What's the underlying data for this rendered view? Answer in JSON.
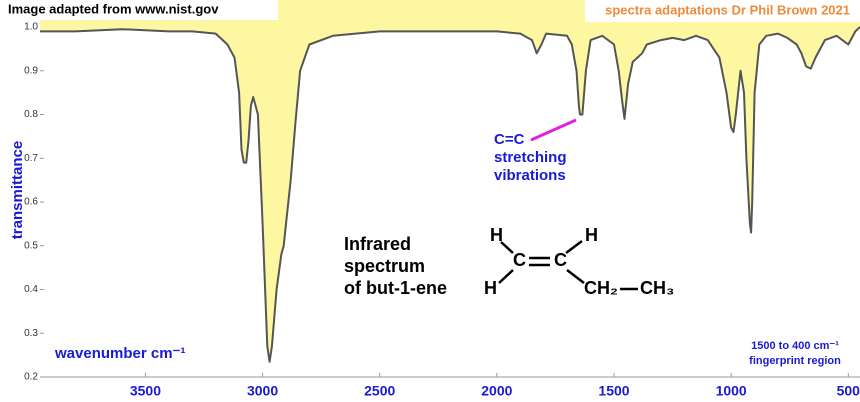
{
  "chart_data": {
    "type": "line",
    "title_lines": [
      "Infrared",
      "spectrum",
      "of but-1-ene"
    ],
    "source": "Image adapted from www.nist.gov",
    "credit": "spectra adaptations Dr Phil Brown 2021",
    "x_label": "wavenumber  cm⁻¹",
    "y_label": "transmittance",
    "annotation_lines": [
      "C=C",
      "stretching",
      "vibrations"
    ],
    "region_lines": [
      "1500 to 400 cm⁻¹",
      "fingerprint region"
    ],
    "molecule": {
      "atoms": [
        "H",
        "H",
        "C",
        "C",
        "H",
        "CH₂",
        "CH₃"
      ]
    },
    "color": "#555555",
    "fill_color": "#fcf7a0",
    "xlim": [
      3950,
      450
    ],
    "ylim": [
      0.2,
      1.0
    ],
    "xticks": [
      3500,
      3000,
      2500,
      2000,
      1500,
      1000,
      500
    ],
    "yticks": [
      {
        "value": 1.0,
        "label": "1.0"
      },
      0.9,
      0.8,
      0.7,
      0.6,
      0.5,
      0.4,
      0.3,
      0.2
    ],
    "grid": false,
    "x": [
      3950,
      3800,
      3600,
      3400,
      3300,
      3200,
      3150,
      3120,
      3100,
      3090,
      3080,
      3070,
      3060,
      3050,
      3040,
      3020,
      3000,
      2980,
      2970,
      2960,
      2940,
      2920,
      2910,
      2900,
      2880,
      2860,
      2840,
      2800,
      2700,
      2500,
      2200,
      2000,
      1900,
      1850,
      1830,
      1810,
      1790,
      1700,
      1680,
      1660,
      1650,
      1645,
      1635,
      1620,
      1600,
      1550,
      1500,
      1480,
      1465,
      1455,
      1440,
      1420,
      1380,
      1360,
      1300,
      1250,
      1200,
      1150,
      1100,
      1050,
      1020,
      1000,
      990,
      980,
      960,
      945,
      935,
      920,
      915,
      910,
      900,
      880,
      850,
      800,
      760,
      720,
      700,
      680,
      660,
      640,
      600,
      550,
      500,
      470,
      450
    ],
    "values": [
      0.99,
      0.99,
      0.995,
      0.99,
      0.99,
      0.985,
      0.96,
      0.93,
      0.85,
      0.72,
      0.69,
      0.69,
      0.74,
      0.82,
      0.84,
      0.8,
      0.55,
      0.27,
      0.235,
      0.27,
      0.4,
      0.48,
      0.5,
      0.55,
      0.65,
      0.78,
      0.9,
      0.96,
      0.98,
      0.99,
      0.99,
      0.99,
      0.985,
      0.97,
      0.94,
      0.96,
      0.985,
      0.98,
      0.96,
      0.9,
      0.82,
      0.8,
      0.8,
      0.9,
      0.97,
      0.98,
      0.96,
      0.9,
      0.83,
      0.79,
      0.87,
      0.92,
      0.94,
      0.96,
      0.97,
      0.975,
      0.97,
      0.98,
      0.97,
      0.93,
      0.85,
      0.77,
      0.76,
      0.8,
      0.9,
      0.85,
      0.7,
      0.55,
      0.53,
      0.6,
      0.85,
      0.96,
      0.98,
      0.985,
      0.975,
      0.96,
      0.94,
      0.91,
      0.905,
      0.93,
      0.97,
      0.98,
      0.96,
      0.99,
      1.0
    ]
  }
}
